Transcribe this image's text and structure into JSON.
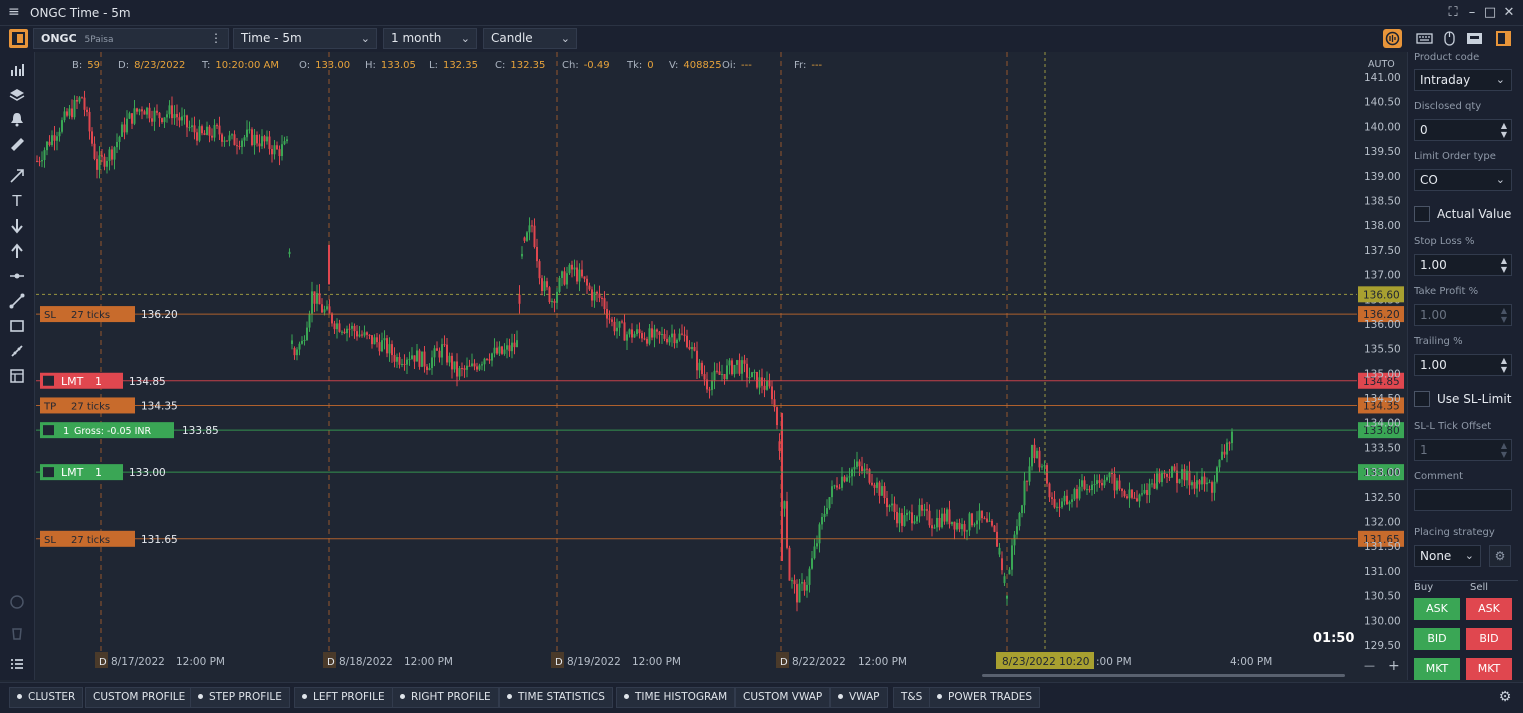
{
  "window": {
    "title": "ONGC Time - 5m",
    "menu_icon": "hamburger-icon",
    "buttons": [
      "fullscreen-icon",
      "minimize-icon",
      "maximize-icon",
      "close-icon"
    ]
  },
  "toolbar": {
    "symbol": "ONGC",
    "broker": "5Paisa",
    "timeframe": "Time - 5m",
    "range": "1 month",
    "chart_type": "Candle"
  },
  "info_bar": {
    "items": [
      {
        "key": "B:",
        "value": "59"
      },
      {
        "key": "D:",
        "value": "8/23/2022"
      },
      {
        "key": "T:",
        "value": "10:20:00 AM"
      },
      {
        "key": "O:",
        "value": "133.00"
      },
      {
        "key": "H:",
        "value": "133.05"
      },
      {
        "key": "L:",
        "value": "132.35"
      },
      {
        "key": "C:",
        "value": "132.35"
      },
      {
        "key": "Ch:",
        "value": "-0.49"
      },
      {
        "key": "Tk:",
        "value": "0"
      },
      {
        "key": "V:",
        "value": "408825"
      },
      {
        "key": "Oi:",
        "value": "---"
      },
      {
        "key": "Fr:",
        "value": "---"
      }
    ]
  },
  "chart_data": {
    "type": "candlestick",
    "symbol": "ONGC",
    "timeframe": "5m",
    "y_axis_mode": "AUTO",
    "ylim": [
      129.5,
      141.0
    ],
    "y_ticks": [
      "141.00",
      "140.50",
      "140.00",
      "139.50",
      "139.00",
      "138.50",
      "138.00",
      "137.50",
      "137.00",
      "136.50",
      "136.00",
      "135.50",
      "135.00",
      "134.50",
      "134.00",
      "133.50",
      "133.00",
      "132.50",
      "132.00",
      "131.50",
      "131.00",
      "130.50",
      "130.00",
      "129.50"
    ],
    "x_labels": [
      {
        "text": "8/17/2022",
        "day_marker": true
      },
      {
        "text": "12:00 PM",
        "day_marker": false
      },
      {
        "text": "8/18/2022",
        "day_marker": true
      },
      {
        "text": "12:00 PM",
        "day_marker": false
      },
      {
        "text": "8/19/2022",
        "day_marker": true
      },
      {
        "text": "12:00 PM",
        "day_marker": false
      },
      {
        "text": "8/22/2022",
        "day_marker": true
      },
      {
        "text": "12:00 PM",
        "day_marker": false
      },
      {
        "text": ":00 PM",
        "day_marker": false
      },
      {
        "text": "4:00 PM",
        "day_marker": false
      }
    ],
    "day_marker_label": "D",
    "crosshair": {
      "time_label": "8/23/2022 10:20",
      "price": 136.6
    },
    "path": [
      [
        0,
        139.3
      ],
      [
        15,
        139.8
      ],
      [
        30,
        140.2
      ],
      [
        45,
        140.6
      ],
      [
        60,
        139.2
      ],
      [
        75,
        139.5
      ],
      [
        90,
        140.1
      ],
      [
        105,
        140.4
      ],
      [
        120,
        140.2
      ],
      [
        135,
        140.3
      ],
      [
        150,
        140.0
      ],
      [
        165,
        139.8
      ],
      [
        180,
        139.9
      ],
      [
        195,
        139.7
      ],
      [
        210,
        139.8
      ],
      [
        225,
        139.7
      ],
      [
        240,
        139.5
      ],
      [
        250,
        139.6
      ],
      [
        255,
        135.5
      ],
      [
        265,
        135.6
      ],
      [
        275,
        136.6
      ],
      [
        285,
        136.3
      ],
      [
        300,
        136.0
      ],
      [
        315,
        135.9
      ],
      [
        330,
        135.7
      ],
      [
        345,
        135.6
      ],
      [
        360,
        135.3
      ],
      [
        375,
        135.4
      ],
      [
        390,
        135.2
      ],
      [
        405,
        135.5
      ],
      [
        420,
        135.0
      ],
      [
        435,
        135.1
      ],
      [
        450,
        135.4
      ],
      [
        465,
        135.4
      ],
      [
        480,
        135.6
      ],
      [
        485,
        137.5
      ],
      [
        495,
        138.0
      ],
      [
        505,
        136.8
      ],
      [
        515,
        136.5
      ],
      [
        525,
        136.9
      ],
      [
        535,
        137.1
      ],
      [
        545,
        136.9
      ],
      [
        555,
        136.6
      ],
      [
        565,
        136.5
      ],
      [
        575,
        136.0
      ],
      [
        590,
        135.8
      ],
      [
        605,
        135.8
      ],
      [
        620,
        135.7
      ],
      [
        635,
        135.8
      ],
      [
        650,
        135.7
      ],
      [
        660,
        135.2
      ],
      [
        670,
        134.8
      ],
      [
        685,
        135.0
      ],
      [
        700,
        135.2
      ],
      [
        715,
        134.9
      ],
      [
        725,
        134.8
      ],
      [
        735,
        134.6
      ],
      [
        740,
        134.0
      ],
      [
        745,
        133.2
      ],
      [
        752,
        130.9
      ],
      [
        760,
        130.5
      ],
      [
        770,
        130.8
      ],
      [
        780,
        131.6
      ],
      [
        790,
        132.4
      ],
      [
        800,
        132.8
      ],
      [
        810,
        133.0
      ],
      [
        820,
        133.1
      ],
      [
        835,
        132.9
      ],
      [
        850,
        132.4
      ],
      [
        865,
        132.0
      ],
      [
        880,
        132.2
      ],
      [
        895,
        132.0
      ],
      [
        910,
        132.1
      ],
      [
        925,
        131.9
      ],
      [
        940,
        132.1
      ],
      [
        955,
        131.8
      ],
      [
        962,
        131.5
      ],
      [
        970,
        130.5
      ],
      [
        975,
        131.4
      ],
      [
        985,
        132.5
      ],
      [
        995,
        133.4
      ],
      [
        1005,
        133.2
      ],
      [
        1015,
        132.4
      ],
      [
        1025,
        132.3
      ],
      [
        1040,
        132.6
      ],
      [
        1055,
        132.8
      ],
      [
        1070,
        132.9
      ],
      [
        1085,
        132.6
      ],
      [
        1100,
        132.4
      ],
      [
        1115,
        132.8
      ],
      [
        1130,
        133.0
      ],
      [
        1145,
        132.9
      ],
      [
        1160,
        132.8
      ],
      [
        1175,
        132.7
      ],
      [
        1185,
        133.3
      ],
      [
        1195,
        133.8
      ]
    ],
    "price_lines": [
      {
        "kind": "SL",
        "qty_text": "27 ticks",
        "price": 136.2,
        "color": "#c86b2c"
      },
      {
        "kind": "LMT",
        "qty": "1",
        "price": 134.85,
        "color": "#e0474f"
      },
      {
        "kind": "TP",
        "qty_text": "27 ticks",
        "price": 134.35,
        "color": "#c86b2c"
      },
      {
        "kind": "POS",
        "qty": "1",
        "gross": "Gross: -0.05 INR",
        "price": 133.85,
        "axis_price": 133.8,
        "color": "#3aa655"
      },
      {
        "kind": "LMT",
        "qty": "1",
        "price": 133.0,
        "color": "#3aa655"
      },
      {
        "kind": "SL",
        "qty_text": "27 ticks",
        "price": 131.65,
        "color": "#c86b2c"
      }
    ],
    "countdown": "01:50",
    "colors": {
      "up": "#3aa655",
      "down": "#e0474f",
      "axis_text": "#b7bfca",
      "grid_session": "#c86b2c"
    }
  },
  "order_panel": {
    "product_code_label": "Product code",
    "product_code": "Intraday",
    "disclosed_qty_label": "Disclosed qty",
    "disclosed_qty": "0",
    "limit_order_type_label": "Limit Order type",
    "limit_order_type": "CO",
    "actual_value_label": "Actual Value",
    "stop_loss_label": "Stop Loss %",
    "stop_loss": "1.00",
    "take_profit_label": "Take Profit %",
    "take_profit": "1.00",
    "trailing_label": "Trailing %",
    "trailing": "1.00",
    "use_sl_limit_label": "Use SL-Limit",
    "sl_tick_offset_label": "SL-L Tick Offset",
    "sl_tick_offset": "1",
    "comment_label": "Comment",
    "comment": "",
    "placing_strategy_label": "Placing strategy",
    "placing_strategy": "None",
    "buy_label": "Buy",
    "sell_label": "Sell",
    "buttons": [
      "ASK",
      "BID",
      "MKT"
    ]
  },
  "bottom_tabs": [
    {
      "label": "CLUSTER",
      "dot": true
    },
    {
      "label": "CUSTOM PROFILE",
      "dot": false
    },
    {
      "label": "STEP PROFILE",
      "dot": true
    },
    {
      "label": "LEFT PROFILE",
      "dot": true
    },
    {
      "label": "RIGHT PROFILE",
      "dot": true
    },
    {
      "label": "TIME STATISTICS",
      "dot": true
    },
    {
      "label": "TIME HISTOGRAM",
      "dot": true
    },
    {
      "label": "CUSTOM VWAP",
      "dot": false
    },
    {
      "label": "VWAP",
      "dot": true
    },
    {
      "label": "T&S",
      "dot": false
    },
    {
      "label": "POWER TRADES",
      "dot": true
    }
  ]
}
